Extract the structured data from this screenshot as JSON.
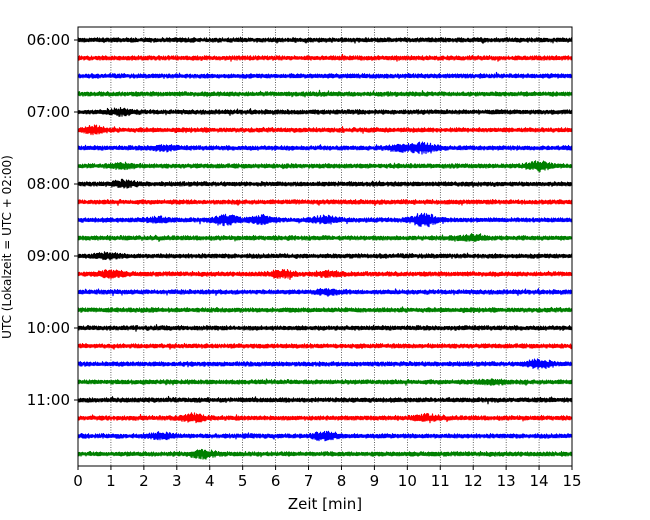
{
  "chart_data": {
    "type": "line",
    "title": "",
    "xlabel": "Zeit  [min]",
    "ylabel": "UTC (Lokalzeit = UTC + 02:00)",
    "xlim": [
      0,
      15
    ],
    "x_ticks": [
      "0",
      "1",
      "2",
      "3",
      "4",
      "5",
      "6",
      "7",
      "8",
      "9",
      "10",
      "11",
      "12",
      "13",
      "14",
      "15"
    ],
    "y_ticks": [
      "06:00",
      "07:00",
      "08:00",
      "09:00",
      "10:00",
      "11:00"
    ],
    "trace_start": "06:00",
    "trace_interval_min": 15,
    "trace_count": 24,
    "grid_x": true,
    "color_cycle": [
      "#000000",
      "#ff0000",
      "#0000ff",
      "#008000"
    ],
    "events": [
      {
        "trace": 4,
        "x": 1.3,
        "amp": 2.5
      },
      {
        "trace": 5,
        "x": 0.45,
        "amp": 3
      },
      {
        "trace": 6,
        "x": 10.5,
        "amp": 4.5
      },
      {
        "trace": 6,
        "x": 9.8,
        "amp": 2.5
      },
      {
        "trace": 6,
        "x": 2.6,
        "amp": 2
      },
      {
        "trace": 7,
        "x": 14.0,
        "amp": 3.5
      },
      {
        "trace": 7,
        "x": 1.4,
        "amp": 2
      },
      {
        "trace": 8,
        "x": 1.4,
        "amp": 2.5
      },
      {
        "trace": 10,
        "x": 4.5,
        "amp": 4.5
      },
      {
        "trace": 10,
        "x": 5.6,
        "amp": 3
      },
      {
        "trace": 10,
        "x": 10.5,
        "amp": 5.5
      },
      {
        "trace": 10,
        "x": 7.5,
        "amp": 3
      },
      {
        "trace": 10,
        "x": 2.4,
        "amp": 2
      },
      {
        "trace": 11,
        "x": 12.0,
        "amp": 2
      },
      {
        "trace": 12,
        "x": 0.9,
        "amp": 2
      },
      {
        "trace": 13,
        "x": 1.0,
        "amp": 3
      },
      {
        "trace": 13,
        "x": 6.2,
        "amp": 3
      },
      {
        "trace": 13,
        "x": 7.6,
        "amp": 2
      },
      {
        "trace": 14,
        "x": 7.6,
        "amp": 2
      },
      {
        "trace": 18,
        "x": 14.0,
        "amp": 3.5
      },
      {
        "trace": 19,
        "x": 12.6,
        "amp": 2
      },
      {
        "trace": 21,
        "x": 3.5,
        "amp": 3
      },
      {
        "trace": 21,
        "x": 10.6,
        "amp": 2.5
      },
      {
        "trace": 22,
        "x": 7.5,
        "amp": 3.5
      },
      {
        "trace": 22,
        "x": 2.5,
        "amp": 2.5
      },
      {
        "trace": 23,
        "x": 3.8,
        "amp": 3
      }
    ]
  }
}
